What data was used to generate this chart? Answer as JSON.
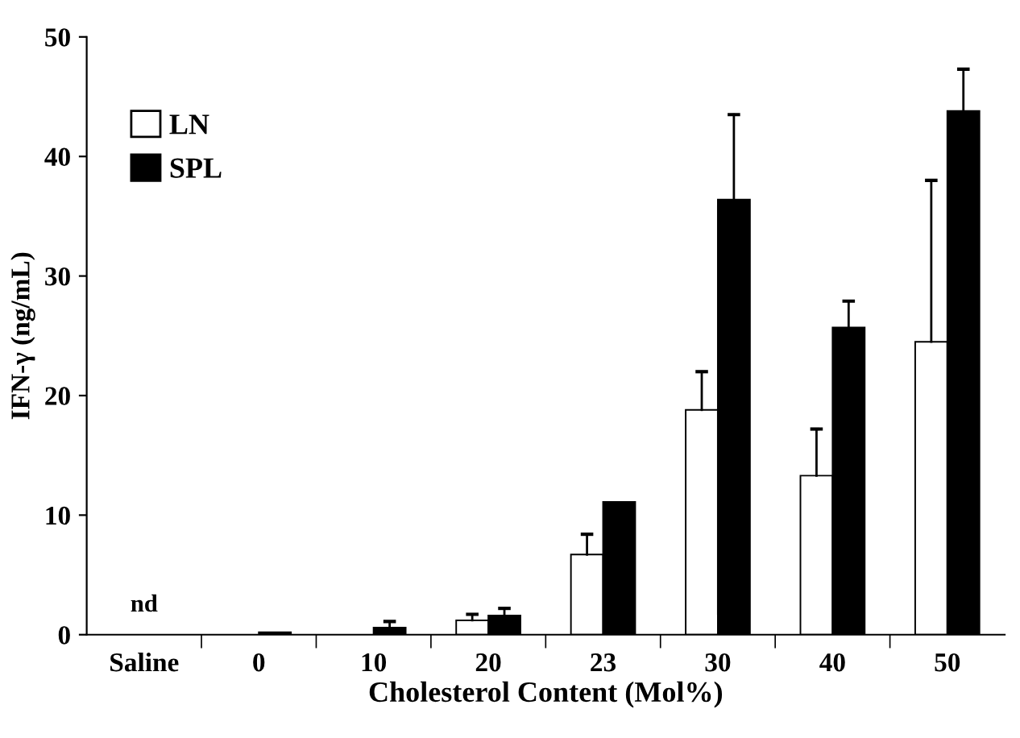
{
  "chart_data": {
    "type": "bar",
    "xlabel": "Cholesterol Content (Mol%)",
    "ylabel": "IFN-γ (ng/mL)",
    "categories": [
      "Saline",
      "0",
      "10",
      "20",
      "23",
      "30",
      "40",
      "50"
    ],
    "series": [
      {
        "name": "LN",
        "color": "#ffffff",
        "values": [
          null,
          null,
          null,
          1.2,
          6.7,
          18.8,
          13.3,
          24.5
        ],
        "errors": [
          null,
          null,
          null,
          [
            1.2,
            1.7
          ],
          [
            6.7,
            8.4
          ],
          [
            18.8,
            22.0
          ],
          [
            13.3,
            17.2
          ],
          [
            24.5,
            38.0
          ]
        ]
      },
      {
        "name": "SPL",
        "color": "#000000",
        "values": [
          null,
          0.2,
          0.6,
          1.6,
          11.1,
          36.4,
          25.7,
          43.8
        ],
        "errors": [
          null,
          null,
          [
            0.6,
            1.1
          ],
          [
            1.6,
            2.2
          ],
          null,
          [
            36.4,
            43.5
          ],
          [
            25.7,
            27.9
          ],
          [
            43.8,
            47.3
          ]
        ]
      }
    ],
    "annotations": [
      "nd"
    ],
    "ylim": [
      0,
      50
    ],
    "yticks": [
      0,
      10,
      20,
      30,
      40,
      50
    ],
    "grid": false,
    "legend": "top left"
  }
}
